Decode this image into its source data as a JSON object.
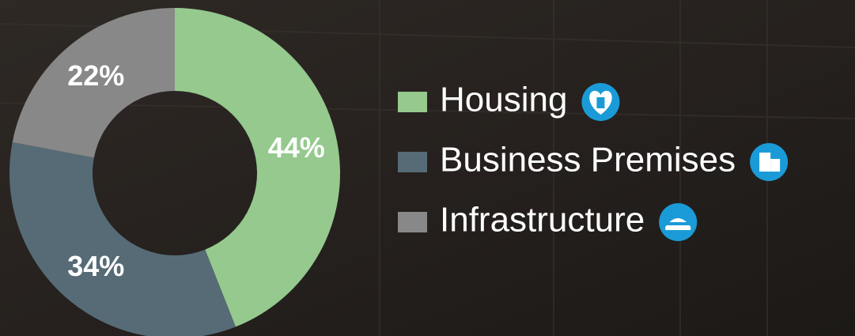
{
  "chart_data": {
    "type": "donut",
    "categories": [
      "Housing",
      "Business Premises",
      "Infrastructure"
    ],
    "values": [
      44,
      34,
      22
    ],
    "value_labels": [
      "44%",
      "34%",
      "22%"
    ],
    "colors": [
      "#95c98e",
      "#566b76",
      "#888888"
    ]
  }
}
